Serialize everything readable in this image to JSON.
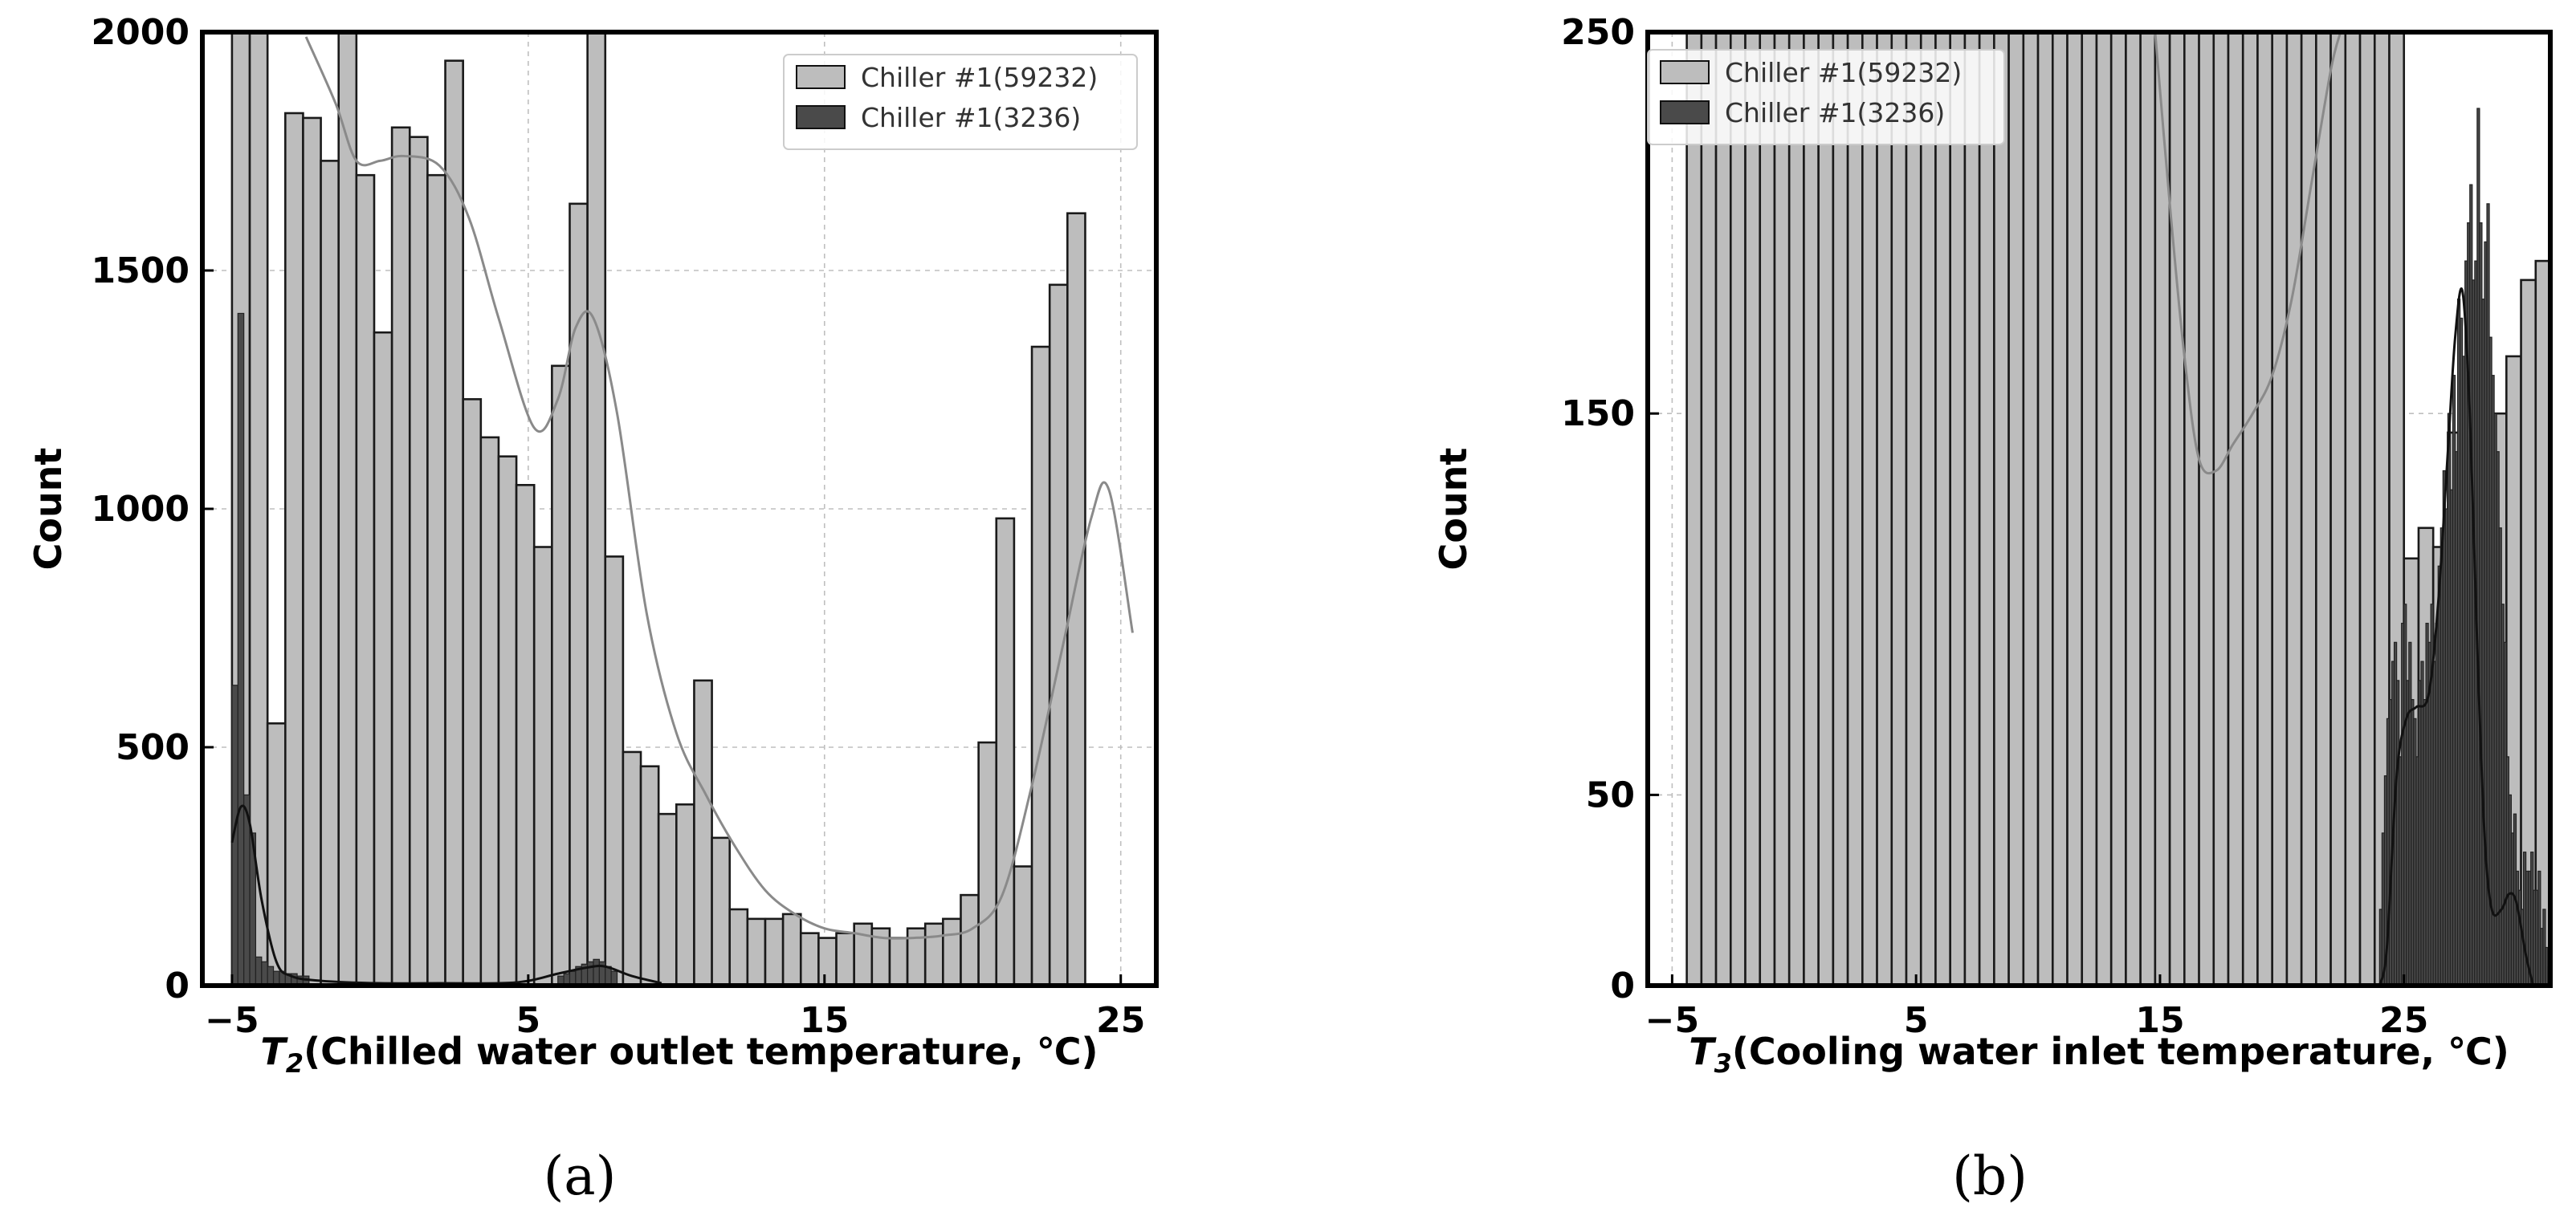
{
  "chart_data": [
    {
      "type": "bar",
      "panel_label": "(a)",
      "xlabel_symbol": "T",
      "xlabel_sub": "2",
      "xlabel_rest": "(Chilled water outlet temperature, ℃)",
      "ylabel": "Count",
      "xlim": [
        -6,
        26.2
      ],
      "ylim": [
        0,
        2000
      ],
      "xticks": [
        -5,
        5,
        15,
        25
      ],
      "xtick_labels": [
        "−5",
        "5",
        "15",
        "25"
      ],
      "yticks": [
        0,
        500,
        1000,
        1500,
        2000
      ],
      "ytick_labels": [
        "0",
        "500",
        "1000",
        "1500",
        "2000"
      ],
      "legend_position": "top-right",
      "grid": true,
      "series": [
        {
          "name": "Chiller #1(59232)",
          "color": "#bdbdbd",
          "bin_start": -5.0,
          "bin_width": 0.6,
          "counts": [
            2000,
            2000,
            550,
            1830,
            1820,
            1730,
            2000,
            1700,
            1370,
            1800,
            1780,
            1700,
            1940,
            1230,
            1150,
            1110,
            1050,
            920,
            1300,
            1640,
            2000,
            900,
            490,
            460,
            360,
            380,
            640,
            310,
            160,
            140,
            140,
            150,
            110,
            100,
            110,
            130,
            120,
            100,
            120,
            130,
            140,
            190,
            510,
            980,
            250,
            1340,
            1470,
            1620
          ],
          "kde_x": [
            -2.5,
            -1.5,
            -0.8,
            0,
            0.8,
            2,
            3,
            4,
            5.2,
            6,
            6.6,
            7.2,
            8,
            9,
            10,
            11,
            12,
            13,
            14,
            15,
            16,
            17,
            18,
            19,
            20,
            21,
            22,
            23,
            24,
            24.6,
            25.4
          ],
          "kde_y": [
            1990,
            1850,
            1730,
            1730,
            1740,
            1720,
            1610,
            1400,
            1170,
            1230,
            1380,
            1400,
            1200,
            780,
            530,
            400,
            290,
            200,
            150,
            120,
            110,
            100,
            100,
            105,
            120,
            190,
            420,
            700,
            980,
            1040,
            740
          ]
        },
        {
          "name": "Chiller #1(3236)",
          "color": "#4a4a4a",
          "bin_start": -5.0,
          "bin_width": 0.2,
          "counts": [
            630,
            1410,
            400,
            320,
            60,
            50,
            40,
            30,
            30,
            25,
            25,
            20,
            20
          ],
          "extra_bars_x": [
            6.0,
            6.2,
            6.4,
            6.6,
            6.8,
            7.0,
            7.2,
            7.4,
            7.6,
            7.8
          ],
          "extra_bars_y": [
            20,
            25,
            30,
            40,
            45,
            50,
            55,
            50,
            40,
            30
          ],
          "kde_x": [
            -5.0,
            -4.7,
            -4.4,
            -4.0,
            -3.5,
            -3,
            -2,
            0,
            2,
            4,
            5,
            6,
            7,
            7.6,
            8.5,
            9.5
          ],
          "kde_y": [
            300,
            375,
            340,
            180,
            50,
            20,
            10,
            5,
            5,
            5,
            10,
            25,
            38,
            40,
            20,
            5
          ]
        }
      ]
    },
    {
      "type": "bar",
      "panel_label": "(b)",
      "xlabel_symbol": "T",
      "xlabel_sub": "3",
      "xlabel_rest": "(Cooling water inlet temperature, ℃)",
      "ylabel": "Count",
      "xlim": [
        -6,
        31
      ],
      "ylim": [
        0,
        250
      ],
      "xticks": [
        -5,
        5,
        15,
        25
      ],
      "xtick_labels": [
        "−5",
        "5",
        "15",
        "25"
      ],
      "yticks": [
        0,
        50,
        150,
        250
      ],
      "ytick_labels": [
        "0",
        "50",
        "150",
        "250"
      ],
      "legend_position": "top-left",
      "grid": true,
      "series": [
        {
          "name": "Chiller #1(59232)",
          "color": "#bdbdbd",
          "bin_start": -4.4,
          "bin_width": 0.6,
          "counts": [
            250,
            250,
            250,
            250,
            250,
            250,
            250,
            250,
            250,
            250,
            250,
            250,
            250,
            250,
            250,
            250,
            250,
            250,
            250,
            250,
            250,
            250,
            250,
            250,
            250,
            250,
            250,
            250,
            250,
            250,
            250,
            250,
            250,
            250,
            250,
            250,
            250,
            250,
            250,
            250,
            250,
            250,
            250,
            250,
            250,
            250,
            250,
            250,
            250,
            112,
            120,
            115,
            145,
            150,
            150,
            150,
            165,
            185,
            190,
            210,
            250,
            250,
            250,
            250,
            250
          ],
          "kde_x": [
            14.8,
            15.4,
            16,
            16.6,
            17.3,
            18,
            18.8,
            19.6,
            20.4,
            21.2,
            22,
            22.4
          ],
          "kde_y": [
            250,
            205,
            165,
            138,
            135,
            142,
            150,
            160,
            180,
            210,
            240,
            250
          ]
        },
        {
          "name": "Chiller #1(3236)",
          "color": "#4a4a4a",
          "bin_start": 24.0,
          "bin_width": 0.1,
          "counts": [
            20,
            40,
            55,
            70,
            75,
            85,
            90,
            80,
            60,
            95,
            100,
            80,
            90,
            75,
            70,
            60,
            80,
            85,
            75,
            95,
            90,
            100,
            85,
            95,
            110,
            120,
            135,
            125,
            150,
            130,
            160,
            140,
            180,
            175,
            165,
            190,
            200,
            210,
            185,
            190,
            230,
            200,
            180,
            195,
            205,
            170,
            160,
            150,
            140,
            120,
            100,
            90,
            60,
            50,
            40,
            45,
            30,
            25,
            20,
            35,
            30,
            30,
            35,
            25,
            25,
            30,
            15,
            20,
            10,
            5
          ],
          "kde_x": [
            24.0,
            24.3,
            24.7,
            25.1,
            25.5,
            26,
            26.4,
            26.8,
            27.1,
            27.4,
            27.7,
            28,
            28.3,
            28.6,
            29,
            29.3,
            29.6,
            30,
            30.3
          ],
          "kde_y": [
            0,
            10,
            55,
            70,
            73,
            76,
            100,
            140,
            170,
            182,
            150,
            90,
            40,
            20,
            20,
            24,
            22,
            8,
            0
          ]
        }
      ]
    }
  ]
}
